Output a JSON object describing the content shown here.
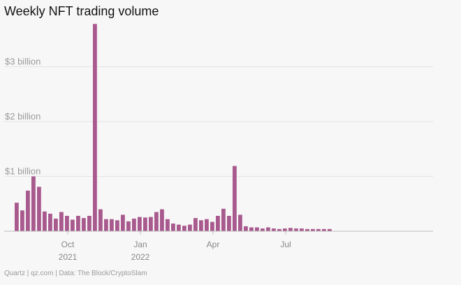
{
  "chart_data": {
    "type": "bar",
    "title": "Weekly NFT trading volume",
    "source": "Quartz | qz.com | Data: The Block/CryptoSlam",
    "unit": "billion USD",
    "ylim": [
      0,
      3.8
    ],
    "yticks": [
      {
        "value": 1,
        "label": "$1 billion"
      },
      {
        "value": 2,
        "label": "$2 billion"
      },
      {
        "value": 3,
        "label": "$3 billion"
      }
    ],
    "xticks": [
      {
        "index": 9.5,
        "label": "Oct",
        "sublabel": "2021"
      },
      {
        "index": 22.5,
        "label": "Jan",
        "sublabel": "2022"
      },
      {
        "index": 35.5,
        "label": "Apr",
        "sublabel": ""
      },
      {
        "index": 48.5,
        "label": "Jul",
        "sublabel": ""
      }
    ],
    "values": [
      0.52,
      0.38,
      0.74,
      1.0,
      0.81,
      0.36,
      0.32,
      0.23,
      0.35,
      0.28,
      0.21,
      0.28,
      0.24,
      0.28,
      3.78,
      0.4,
      0.22,
      0.22,
      0.2,
      0.3,
      0.18,
      0.23,
      0.26,
      0.25,
      0.26,
      0.35,
      0.4,
      0.22,
      0.14,
      0.12,
      0.1,
      0.12,
      0.24,
      0.2,
      0.22,
      0.17,
      0.28,
      0.41,
      0.28,
      1.19,
      0.3,
      0.09,
      0.07,
      0.07,
      0.05,
      0.07,
      0.05,
      0.04,
      0.05,
      0.06,
      0.05,
      0.05,
      0.04,
      0.04,
      0.04,
      0.04,
      0.04
    ],
    "bar_color": "#a85a8e"
  }
}
